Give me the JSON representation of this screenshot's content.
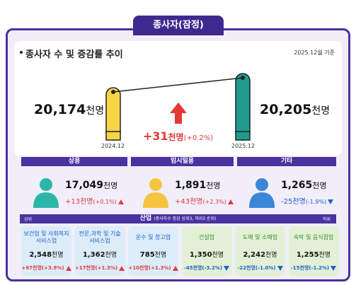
{
  "header": {
    "tab": "종사자(잠정)",
    "title": "종사자 수 및 증감률 추이",
    "date": "2025.12월 기준"
  },
  "trend": {
    "start": {
      "value": "20,174",
      "unit": "천명",
      "period": "2024.12"
    },
    "end": {
      "value": "20,205",
      "unit": "천명",
      "period": "2025.12"
    },
    "change": {
      "value": "+31",
      "unit": "천명",
      "rate": "(+0.2%)"
    }
  },
  "status": [
    {
      "name": "상용",
      "value": "17,049",
      "unit": "천명",
      "change": "+13천명",
      "rate": "(+0.1%)",
      "direction": "up",
      "color": "#2bb7a8"
    },
    {
      "name": "임시일용",
      "value": "1,891",
      "unit": "천명",
      "change": "+43천명",
      "rate": "(+2.3%)",
      "direction": "up",
      "color": "#f5c542"
    },
    {
      "name": "기타",
      "value": "1,265",
      "unit": "천명",
      "change": "-25천명",
      "rate": "(-1.9%)",
      "direction": "down",
      "color": "#3a86d8"
    }
  ],
  "industry": {
    "title": "산업",
    "note": "(종사자수 증감 상위3, 하위3 순위)",
    "top_label": "상위",
    "bottom_label": "하위",
    "items": [
      {
        "name": "보건업 및 사회복지 서비스업",
        "value": "2,548",
        "unit": "천명",
        "change": "+97천명(+3.9%)",
        "direction": "up"
      },
      {
        "name": "전문,과학 및 기술 서비스업",
        "value": "1,362",
        "unit": "천명",
        "change": "+17천명(+1.3%)",
        "direction": "up"
      },
      {
        "name": "운수 및 창고업",
        "value": "785",
        "unit": "천명",
        "change": "+10천명(+1.3%)",
        "direction": "up"
      },
      {
        "name": "건설업",
        "value": "1,350",
        "unit": "천명",
        "change": "-45천명(-3.2%)",
        "direction": "down"
      },
      {
        "name": "도매 및 소매업",
        "value": "2,242",
        "unit": "천명",
        "change": "-22천명(-1.0%)",
        "direction": "down"
      },
      {
        "name": "숙박 및 음식점업",
        "value": "1,255",
        "unit": "천명",
        "change": "-15천명(-1.2%)",
        "direction": "down"
      }
    ]
  }
}
